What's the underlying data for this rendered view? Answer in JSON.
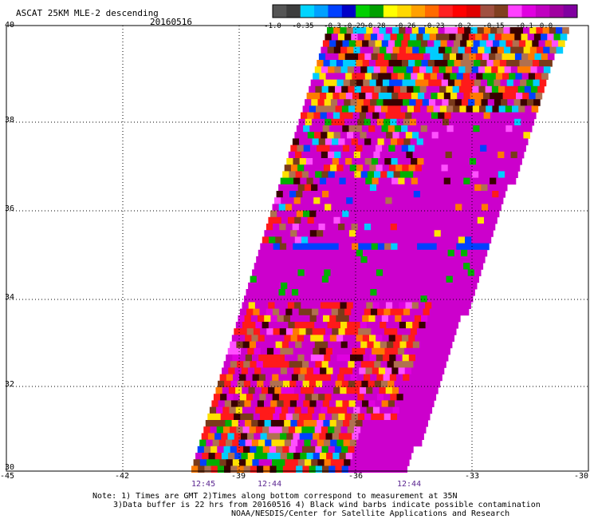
{
  "header": {
    "title": "ASCAT 25KM MLE-2 descending",
    "date": "20160516"
  },
  "colorbar": {
    "labels": [
      "-1.0",
      "-0.35",
      "-0.3",
      "-0.29",
      "-0.28",
      "-0.26",
      "-0.23",
      "-0.2",
      "-0.15",
      "-0.1",
      "0.0"
    ],
    "colors": [
      "#555555",
      "#3d3d3d",
      "#00d4ff",
      "#00a0ff",
      "#0040ff",
      "#0000c8",
      "#00d000",
      "#00a000",
      "#ffff00",
      "#ffd800",
      "#ffa000",
      "#ff6a00",
      "#ff2020",
      "#ff0000",
      "#e00000",
      "#a05040",
      "#804020",
      "#ff40ff",
      "#e000e0",
      "#c000c0",
      "#a000a0",
      "#8000a0"
    ]
  },
  "axes": {
    "x_labels": [
      "-45",
      "-42",
      "-39",
      "-36",
      "-33",
      "-30"
    ],
    "y_labels": [
      "40",
      "38",
      "36",
      "34",
      "32",
      "30"
    ]
  },
  "times": [
    "12:45",
    "12:44",
    "12:44"
  ],
  "notes": {
    "line1": "Note: 1) Times are GMT 2)Times along bottom correspond to measurement at 35N",
    "line2": "3)Data buffer is 22 hrs from 20160516 4) Black wind barbs indicate possible contamination",
    "line3": "NOAA/NESDIS/Center for Satellite Applications and Research"
  }
}
